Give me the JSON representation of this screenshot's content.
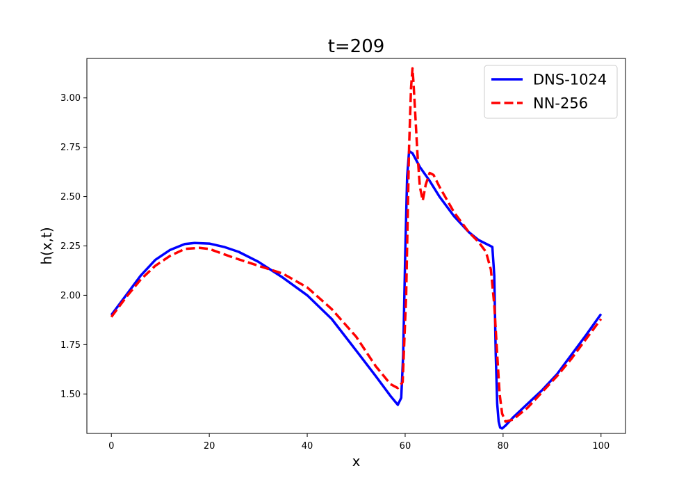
{
  "chart_data": {
    "type": "line",
    "title": "t=209",
    "xlabel": "x",
    "ylabel": "h(x,t)",
    "xlim": [
      -5,
      105
    ],
    "ylim": [
      1.3,
      3.2
    ],
    "xticks": [
      0,
      20,
      40,
      60,
      80,
      100
    ],
    "yticks": [
      1.5,
      1.75,
      2.0,
      2.25,
      2.5,
      2.75,
      3.0
    ],
    "ytick_labels": [
      "1.50",
      "1.75",
      "2.00",
      "2.25",
      "2.50",
      "2.75",
      "3.00"
    ],
    "grid": false,
    "legend_position": "top-right",
    "series": [
      {
        "name": "DNS-1024",
        "color": "#0000ff",
        "style": "solid",
        "x": [
          0,
          3,
          6,
          9,
          12,
          15,
          17,
          20,
          23,
          26,
          30,
          35,
          40,
          45,
          50,
          54,
          57,
          58.5,
          59.2,
          59.6,
          60,
          60.4,
          60.8,
          61.5,
          63,
          65,
          67,
          70,
          73,
          75,
          77,
          77.8,
          78.2,
          78.5,
          78.8,
          79.1,
          79.4,
          79.8,
          80.5,
          82,
          85,
          88,
          91,
          94,
          97,
          100
        ],
        "y": [
          1.9,
          2.0,
          2.1,
          2.18,
          2.23,
          2.26,
          2.265,
          2.262,
          2.245,
          2.22,
          2.17,
          2.09,
          2.0,
          1.88,
          1.72,
          1.59,
          1.49,
          1.445,
          1.48,
          1.7,
          2.2,
          2.6,
          2.73,
          2.72,
          2.65,
          2.58,
          2.5,
          2.4,
          2.32,
          2.28,
          2.255,
          2.245,
          2.1,
          1.7,
          1.45,
          1.36,
          1.33,
          1.325,
          1.34,
          1.38,
          1.45,
          1.52,
          1.6,
          1.7,
          1.8,
          1.905
        ]
      },
      {
        "name": "NN-256",
        "color": "#ff0000",
        "style": "dashed",
        "x": [
          0,
          3,
          6,
          9,
          12,
          15,
          18,
          20,
          25,
          30,
          35,
          40,
          45,
          50,
          54,
          57,
          58.5,
          59.5,
          60.2,
          60.8,
          61.2,
          61.5,
          61.7,
          62,
          62.5,
          63,
          63.6,
          64.2,
          65,
          65.8,
          67,
          70,
          73,
          75,
          76.5,
          77.5,
          78.2,
          78.8,
          79.3,
          79.8,
          80.5,
          82,
          85,
          88,
          91,
          94,
          97,
          100
        ],
        "y": [
          1.89,
          1.99,
          2.08,
          2.15,
          2.2,
          2.235,
          2.24,
          2.235,
          2.19,
          2.15,
          2.11,
          2.04,
          1.93,
          1.79,
          1.64,
          1.55,
          1.53,
          1.56,
          2.0,
          2.75,
          3.05,
          3.15,
          3.08,
          2.95,
          2.72,
          2.55,
          2.48,
          2.56,
          2.62,
          2.61,
          2.55,
          2.42,
          2.32,
          2.27,
          2.22,
          2.13,
          1.95,
          1.7,
          1.5,
          1.4,
          1.36,
          1.37,
          1.43,
          1.51,
          1.59,
          1.68,
          1.78,
          1.88
        ]
      }
    ]
  }
}
